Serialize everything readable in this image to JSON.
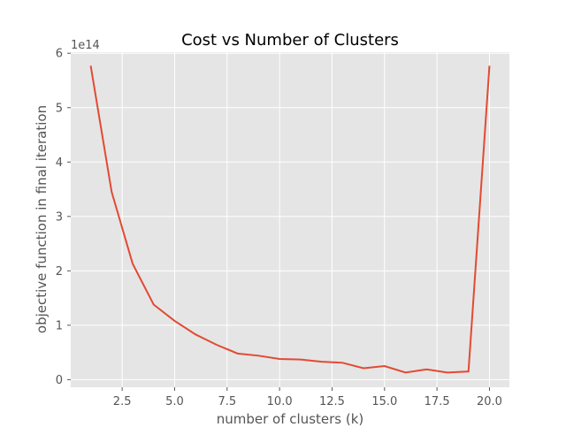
{
  "chart_data": {
    "type": "line",
    "title": "Cost vs Number of Clusters",
    "xlabel": "number of clusters (k)",
    "ylabel": "objective function in final iteration",
    "y_scale_label": "1e14",
    "y_scale": 100000000000000.0,
    "xlim": [
      0.05,
      20.95
    ],
    "ylim": [
      -0.14,
      6.02
    ],
    "x_ticks": [
      2.5,
      5.0,
      7.5,
      10.0,
      12.5,
      15.0,
      17.5,
      20.0
    ],
    "x_tick_labels": [
      "2.5",
      "5.0",
      "7.5",
      "10.0",
      "12.5",
      "15.0",
      "17.5",
      "20.0"
    ],
    "y_ticks": [
      0,
      1,
      2,
      3,
      4,
      5,
      6
    ],
    "y_tick_labels": [
      "0",
      "1",
      "2",
      "3",
      "4",
      "5",
      "6"
    ],
    "grid": true,
    "colors": {
      "line": "#e24a33",
      "background": "#e5e5e5",
      "grid": "#ffffff"
    },
    "series": [
      {
        "x": [
          1,
          2,
          3,
          4,
          5,
          6,
          7,
          8,
          9,
          10,
          11,
          12,
          13,
          14,
          15,
          16,
          17,
          18,
          19,
          20
        ],
        "values": [
          5.77,
          3.45,
          2.13,
          1.38,
          1.08,
          0.83,
          0.64,
          0.48,
          0.44,
          0.38,
          0.37,
          0.33,
          0.31,
          0.21,
          0.25,
          0.13,
          0.19,
          0.13,
          0.15,
          5.77
        ]
      }
    ]
  }
}
